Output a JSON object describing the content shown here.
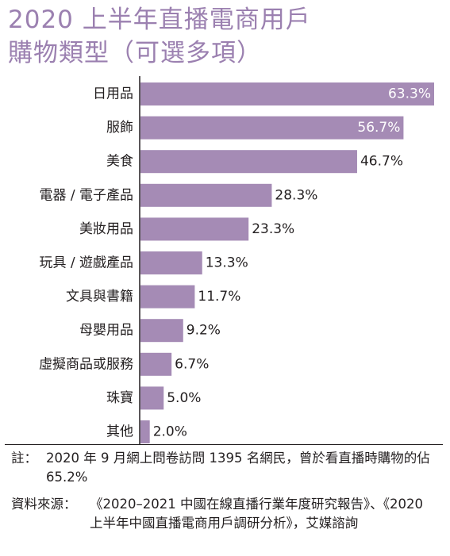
{
  "title_line1": "2020 上半年直播電商用戶",
  "title_line2": "購物類型（可選多項）",
  "chart_data": {
    "type": "bar",
    "orientation": "horizontal",
    "categories": [
      "日用品",
      "服飾",
      "美食",
      "電器 / 電子產品",
      "美妝用品",
      "玩具 / 遊戲產品",
      "文具與書籍",
      "母嬰用品",
      "虛擬商品或服務",
      "珠寶",
      "其他"
    ],
    "values": [
      63.3,
      56.7,
      46.7,
      28.3,
      23.3,
      13.3,
      11.7,
      9.2,
      6.7,
      5.0,
      2.0
    ],
    "value_labels": [
      "63.3%",
      "56.7%",
      "46.7%",
      "28.3%",
      "23.3%",
      "13.3%",
      "11.7%",
      "9.2%",
      "6.7%",
      "5.0%",
      "2.0%"
    ],
    "xlim": [
      0,
      63.3
    ],
    "bar_color": "#a58bb5",
    "grid": false
  },
  "note": {
    "label": "註：",
    "text": "2020 年 9 月網上問卷訪問 1395 名網民，曾於看直播時購物的佔 65.2%"
  },
  "source": {
    "label": "資料來源：",
    "text": "《2020–2021 中國在線直播行業年度研究報告》、《2020 上半年中國直播電商用戶調研分析》，艾媒諮詢"
  }
}
